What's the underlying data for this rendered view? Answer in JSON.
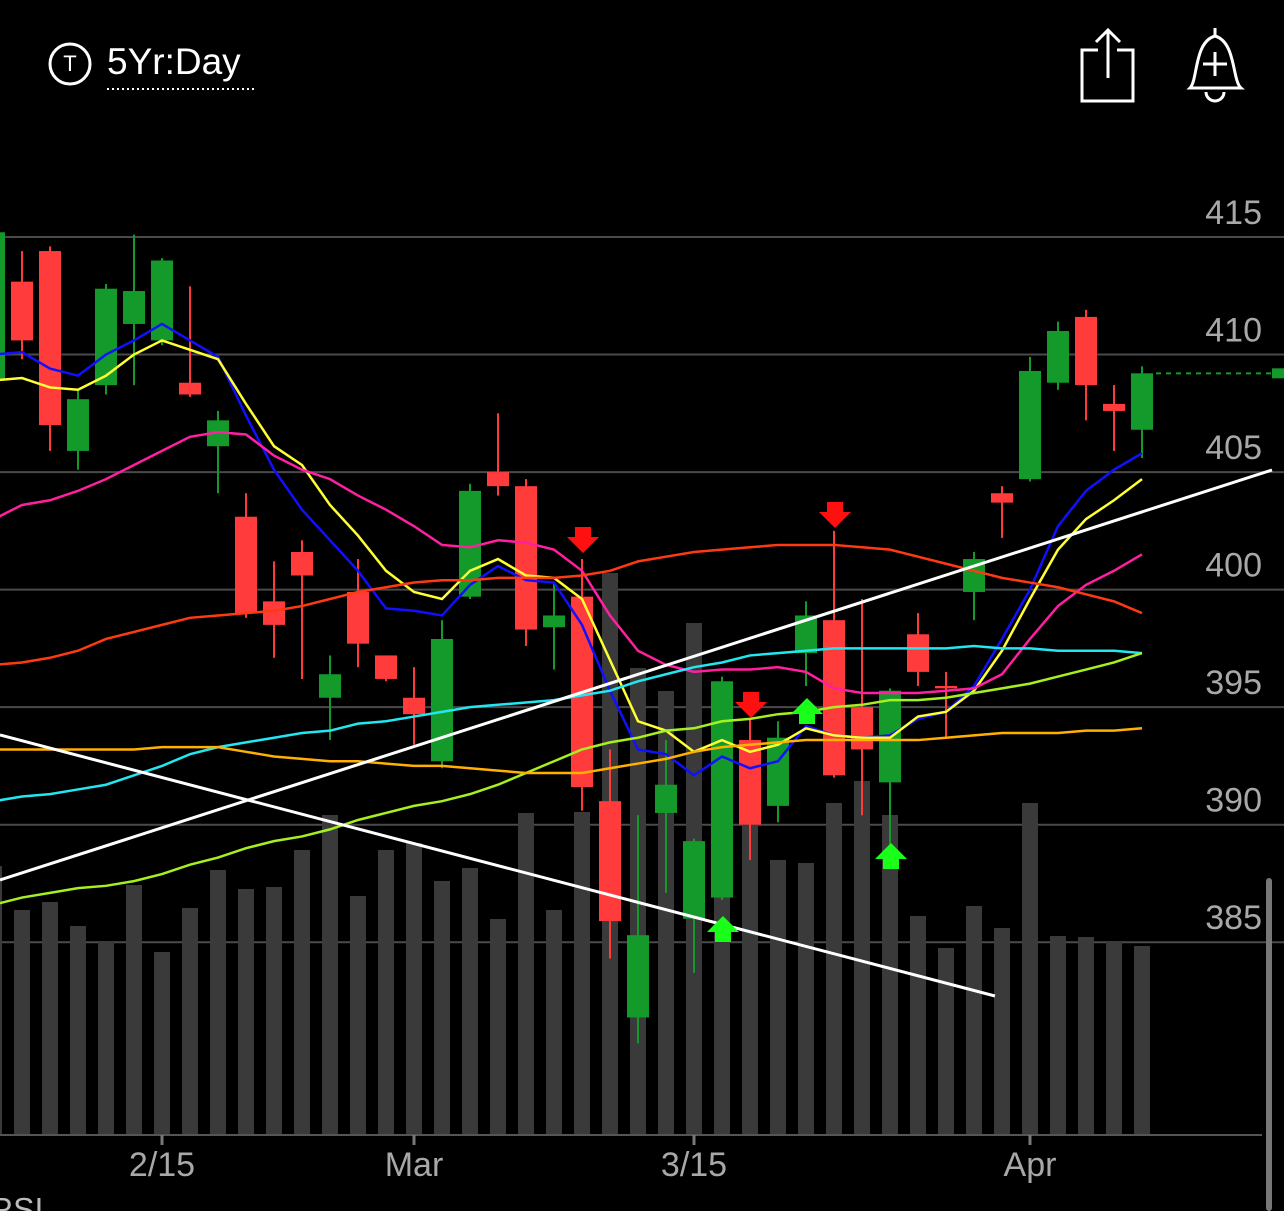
{
  "header": {
    "icon_letter": "T",
    "period": "5Yr:Day"
  },
  "chart_data": {
    "type": "candlestick",
    "lower_panel_title": "RSI",
    "categories": [
      null,
      null,
      null,
      null,
      null,
      null,
      "2/15",
      null,
      null,
      null,
      null,
      null,
      null,
      null,
      null,
      "Mar",
      null,
      null,
      null,
      null,
      null,
      null,
      null,
      null,
      null,
      "3/15",
      null,
      null,
      null,
      null,
      null,
      null,
      null,
      null,
      null,
      null,
      null,
      "Apr",
      null,
      null,
      null,
      null
    ],
    "open": [
      408.9,
      413.1,
      414.4,
      405.9,
      408.7,
      411.3,
      410.6,
      408.8,
      406.1,
      403.1,
      399.5,
      401.6,
      395.4,
      399.9,
      397.2,
      395.4,
      392.7,
      399.7,
      405.0,
      404.4,
      398.4,
      399.7,
      391.0,
      381.8,
      390.5,
      386.0,
      386.9,
      393.6,
      390.8,
      397.3,
      398.7,
      395.0,
      391.8,
      398.1,
      395.9,
      399.9,
      404.1,
      404.7,
      408.8,
      411.6,
      407.9,
      406.8
    ],
    "high": [
      415.3,
      414.4,
      414.6,
      408.5,
      413.0,
      415.1,
      414.1,
      412.9,
      407.6,
      404.1,
      401.2,
      402.1,
      397.2,
      401.3,
      397.2,
      396.7,
      398.7,
      404.5,
      407.5,
      404.7,
      400.3,
      401.3,
      393.2,
      390.4,
      393.6,
      389.4,
      396.3,
      394.5,
      394.4,
      399.5,
      402.5,
      399.6,
      395.8,
      399.0,
      396.5,
      401.6,
      404.4,
      409.9,
      411.4,
      411.9,
      408.7,
      409.5
    ],
    "low": [
      408.5,
      409.8,
      405.9,
      405.1,
      408.3,
      408.7,
      410.4,
      408.2,
      404.1,
      398.8,
      397.1,
      396.2,
      393.6,
      396.7,
      396.1,
      393.4,
      392.4,
      399.6,
      404.0,
      397.6,
      396.6,
      390.6,
      384.3,
      380.7,
      387.1,
      383.7,
      386.8,
      388.5,
      390.1,
      395.9,
      392.0,
      390.4,
      388.9,
      395.9,
      393.7,
      398.7,
      402.2,
      404.6,
      408.5,
      407.2,
      405.9,
      405.6
    ],
    "close": [
      415.2,
      410.6,
      407.0,
      408.1,
      412.8,
      412.7,
      414.0,
      408.3,
      407.2,
      399.0,
      398.5,
      400.6,
      396.4,
      397.7,
      396.2,
      394.7,
      397.9,
      404.2,
      404.4,
      398.3,
      398.9,
      391.6,
      385.9,
      385.3,
      391.7,
      389.3,
      396.1,
      390.0,
      393.7,
      398.9,
      392.1,
      393.2,
      395.7,
      396.5,
      395.8,
      401.3,
      403.7,
      409.3,
      411.0,
      408.7,
      407.6,
      409.2
    ],
    "volume": [
      269,
      225,
      233,
      209,
      194,
      250,
      183,
      227,
      265,
      246,
      248,
      285,
      320,
      239,
      285,
      292,
      254,
      267,
      216,
      322,
      225,
      323,
      562,
      467,
      444,
      512,
      425,
      340,
      275,
      272,
      332,
      354,
      320,
      219,
      187,
      229,
      207,
      332,
      199,
      198,
      194,
      189
    ],
    "volume_lim": [
      0,
      600
    ],
    "ylim": [
      376.8,
      418.7
    ],
    "yticks": [
      385,
      390,
      395,
      400,
      405,
      410,
      415
    ],
    "grid": true,
    "up_color": "#149a2a",
    "down_color": "#ff3b3b",
    "volume_color": "#3a3a3a",
    "series": [
      {
        "color": "#1010ff",
        "values": [
          410.0,
          410.1,
          409.4,
          409.1,
          410.0,
          410.6,
          411.3,
          410.6,
          409.9,
          407.4,
          405.1,
          403.4,
          402.1,
          400.8,
          399.2,
          399.1,
          398.9,
          400.2,
          401.0,
          400.4,
          400.3,
          398.5,
          395.7,
          393.2,
          393.0,
          392.1,
          392.9,
          392.4,
          392.7,
          394.2,
          393.8,
          393.7,
          393.8,
          394.5,
          394.8,
          395.9,
          397.9,
          400.0,
          402.7,
          404.2,
          405.1,
          405.8
        ]
      },
      {
        "color": "#ffff33",
        "values": [
          408.9,
          409.0,
          408.6,
          408.5,
          409.1,
          410.0,
          410.6,
          410.2,
          409.8,
          407.9,
          406.1,
          405.3,
          403.6,
          402.3,
          400.8,
          399.9,
          399.6,
          400.8,
          401.3,
          400.6,
          400.5,
          399.6,
          397.0,
          394.4,
          394.0,
          393.1,
          393.6,
          393.1,
          393.4,
          394.1,
          393.8,
          393.7,
          393.7,
          394.6,
          394.8,
          395.7,
          397.4,
          399.6,
          401.7,
          403.0,
          403.8,
          404.7
        ]
      },
      {
        "color": "#ff1fa0",
        "values": [
          403.0,
          403.6,
          403.8,
          404.2,
          404.7,
          405.3,
          405.9,
          406.5,
          406.7,
          406.6,
          405.7,
          405.1,
          404.7,
          404.0,
          403.4,
          402.7,
          401.9,
          401.8,
          402.1,
          402.0,
          401.7,
          400.8,
          398.9,
          397.4,
          396.8,
          396.5,
          396.6,
          396.6,
          396.7,
          396.5,
          395.8,
          395.6,
          395.6,
          395.6,
          395.7,
          395.8,
          396.4,
          397.9,
          399.3,
          400.2,
          400.8,
          401.5
        ]
      },
      {
        "color": "#ff3a12",
        "values": [
          396.8,
          396.9,
          397.1,
          397.4,
          397.9,
          398.2,
          398.5,
          398.8,
          398.9,
          399.0,
          399.1,
          399.3,
          399.6,
          399.9,
          400.1,
          400.3,
          400.4,
          400.4,
          400.5,
          400.5,
          400.5,
          400.6,
          400.8,
          401.2,
          401.4,
          401.6,
          401.7,
          401.8,
          401.9,
          401.9,
          401.9,
          401.8,
          401.7,
          401.4,
          401.1,
          400.8,
          400.5,
          400.3,
          400.1,
          399.8,
          399.5,
          399.0
        ]
      },
      {
        "color": "#22e6f0",
        "values": [
          391.0,
          391.2,
          391.3,
          391.5,
          391.7,
          392.1,
          392.5,
          393.0,
          393.3,
          393.5,
          393.7,
          393.9,
          394.0,
          394.3,
          394.4,
          394.6,
          394.8,
          395.0,
          395.1,
          395.2,
          395.3,
          395.5,
          395.7,
          396.1,
          396.4,
          396.7,
          396.9,
          397.2,
          397.3,
          397.4,
          397.5,
          397.5,
          397.5,
          397.5,
          397.5,
          397.6,
          397.5,
          397.5,
          397.4,
          397.4,
          397.4,
          397.3
        ]
      },
      {
        "color": "#a6f020",
        "values": [
          386.6,
          386.9,
          387.1,
          387.3,
          387.4,
          387.6,
          387.9,
          388.3,
          388.6,
          389.0,
          389.3,
          389.5,
          389.8,
          390.2,
          390.5,
          390.8,
          391.0,
          391.3,
          391.7,
          392.2,
          392.7,
          393.2,
          393.5,
          393.7,
          394.0,
          394.1,
          394.4,
          394.5,
          394.7,
          394.8,
          395.0,
          395.1,
          395.3,
          395.3,
          395.4,
          395.6,
          395.8,
          396.0,
          396.3,
          396.6,
          396.9,
          397.3
        ]
      },
      {
        "color": "#ffb000",
        "values": [
          393.2,
          393.2,
          393.2,
          393.2,
          393.2,
          393.2,
          393.3,
          393.3,
          393.3,
          393.1,
          392.9,
          392.8,
          392.7,
          392.7,
          392.6,
          392.5,
          392.5,
          392.4,
          392.3,
          392.2,
          392.2,
          392.2,
          392.4,
          392.6,
          392.8,
          393.1,
          393.3,
          393.4,
          393.5,
          393.6,
          393.6,
          393.6,
          393.6,
          393.6,
          393.7,
          393.8,
          393.9,
          393.9,
          393.9,
          394.0,
          394.0,
          394.1
        ]
      }
    ]
  }
}
